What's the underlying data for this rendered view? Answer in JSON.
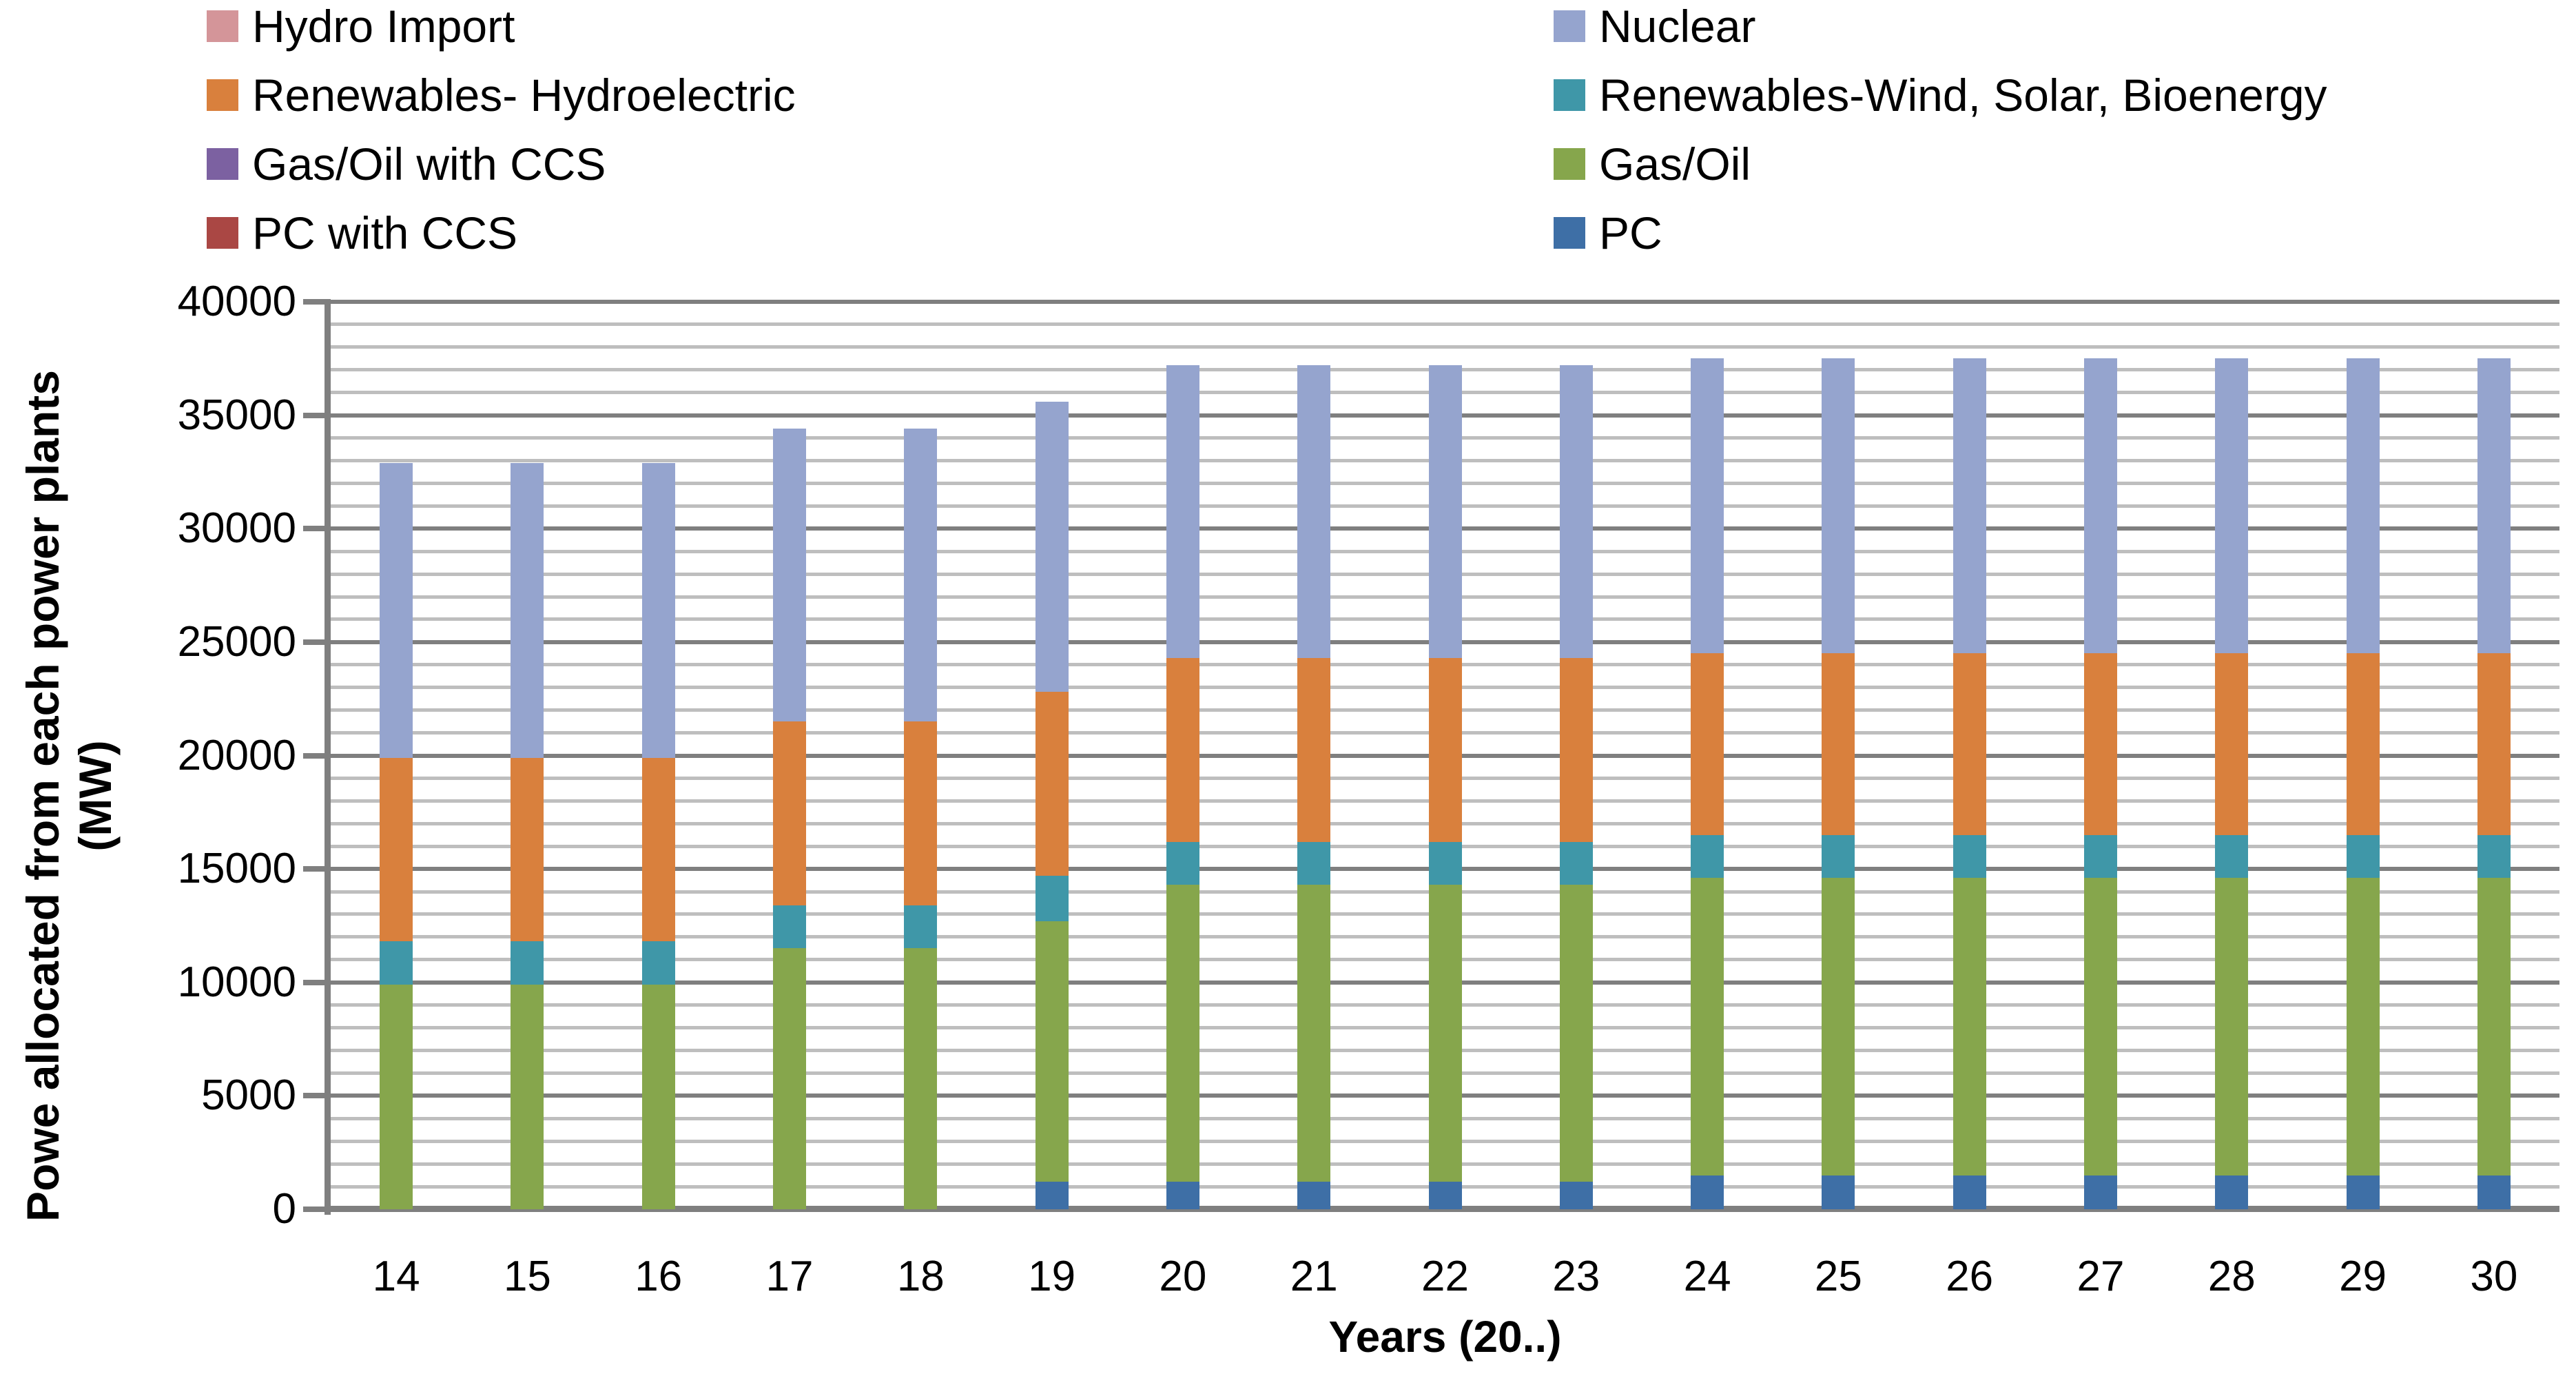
{
  "chart_data": {
    "type": "bar",
    "stacked": true,
    "title": "",
    "xlabel": "Years (20..)",
    "ylabel_lines": [
      "Powe allocated from each power plants",
      "(MW)"
    ],
    "ylim": [
      0,
      40000
    ],
    "y_major_step": 5000,
    "y_minor_step": 1000,
    "y_ticks": [
      0,
      5000,
      10000,
      15000,
      20000,
      25000,
      30000,
      35000,
      40000
    ],
    "grid": "horizontal major+minor",
    "legend_position": "top, two columns",
    "categories": [
      "14",
      "15",
      "16",
      "17",
      "18",
      "19",
      "20",
      "21",
      "22",
      "23",
      "24",
      "25",
      "26",
      "27",
      "28",
      "29",
      "30"
    ],
    "series": [
      {
        "name": "PC",
        "color": "#3E6FA6",
        "values": [
          0,
          0,
          0,
          0,
          0,
          1200,
          1200,
          1200,
          1200,
          1200,
          1500,
          1500,
          1500,
          1500,
          1500,
          1500,
          1500
        ]
      },
      {
        "name": "PC with CCS",
        "color": "#AA4744",
        "values": [
          0,
          0,
          0,
          0,
          0,
          0,
          0,
          0,
          0,
          0,
          0,
          0,
          0,
          0,
          0,
          0,
          0
        ]
      },
      {
        "name": "Gas/Oil",
        "color": "#86A64C",
        "values": [
          9900,
          9900,
          9900,
          11500,
          11500,
          11500,
          13100,
          13100,
          13100,
          13100,
          13100,
          13100,
          13100,
          13100,
          13100,
          13100,
          13100
        ]
      },
      {
        "name": "Gas/Oil with CCS",
        "color": "#7C61A1",
        "values": [
          0,
          0,
          0,
          0,
          0,
          0,
          0,
          0,
          0,
          0,
          0,
          0,
          0,
          0,
          0,
          0,
          0
        ]
      },
      {
        "name": "Renewables-Wind, Solar, Bioenergy",
        "color": "#3F97A8",
        "values": [
          1900,
          1900,
          1900,
          1900,
          1900,
          2000,
          1900,
          1900,
          1900,
          1900,
          1900,
          1900,
          1900,
          1900,
          1900,
          1900,
          1900
        ]
      },
      {
        "name": "Renewables- Hydroelectric",
        "color": "#D9803D",
        "values": [
          8100,
          8100,
          8100,
          8100,
          8100,
          8100,
          8100,
          8100,
          8100,
          8100,
          8000,
          8000,
          8000,
          8000,
          8000,
          8000,
          8000
        ]
      },
      {
        "name": "Nuclear",
        "color": "#95A4CE",
        "values": [
          13000,
          13000,
          13000,
          12900,
          12900,
          12800,
          12900,
          12900,
          12900,
          12900,
          13000,
          13000,
          13000,
          13000,
          13000,
          13000,
          13000
        ]
      },
      {
        "name": "Hydro Import",
        "color": "#D49599",
        "values": [
          0,
          0,
          0,
          0,
          0,
          0,
          0,
          0,
          0,
          0,
          0,
          0,
          0,
          0,
          0,
          0,
          0
        ]
      }
    ],
    "legend": [
      {
        "label": "Hydro Import",
        "color": "#D49599"
      },
      {
        "label": "Nuclear",
        "color": "#95A4CE"
      },
      {
        "label": "Renewables- Hydroelectric",
        "color": "#D9803D"
      },
      {
        "label": "Renewables-Wind, Solar, Bioenergy",
        "color": "#3F97A8"
      },
      {
        "label": "Gas/Oil with CCS",
        "color": "#7C61A1"
      },
      {
        "label": "Gas/Oil",
        "color": "#86A64C"
      },
      {
        "label": "PC with CCS",
        "color": "#AA4744"
      },
      {
        "label": "PC",
        "color": "#3E6FA6"
      }
    ]
  }
}
